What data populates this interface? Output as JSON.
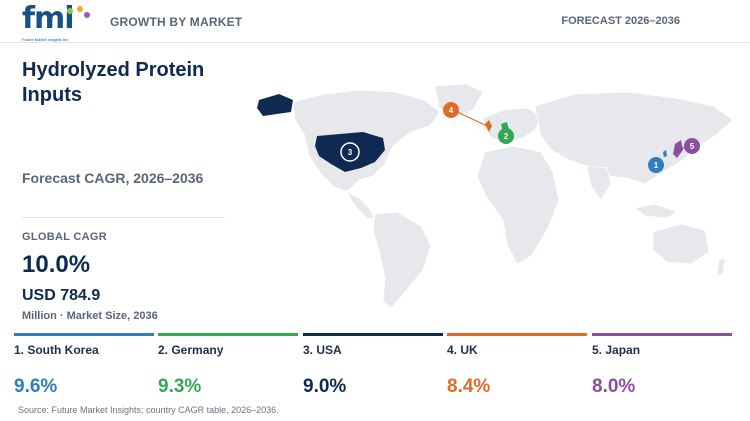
{
  "header": {
    "logo_letters": "fmi",
    "logo_tagline": "Future Market Insights Inc.",
    "left_label": "GROWTH BY MARKET",
    "right_label": "FORECAST 2026–2036"
  },
  "title": "Hydrolyzed Protein Inputs",
  "subtitle": "Forecast CAGR, 2026–2036",
  "global": {
    "label": "GLOBAL CAGR",
    "value": "10.0%",
    "size_value": "USD 784.9",
    "size_label": "Million · Market Size, 2036"
  },
  "countries": [
    {
      "rank": "1",
      "name": "1. South Korea",
      "value": "9.6%",
      "color": "#2f7dbb"
    },
    {
      "rank": "2",
      "name": "2. Germany",
      "value": "9.3%",
      "color": "#33a852"
    },
    {
      "rank": "3",
      "name": "3. USA",
      "value": "9.0%",
      "color": "#0e2a52"
    },
    {
      "rank": "4",
      "name": "4. UK",
      "value": "8.4%",
      "color": "#e06b26"
    },
    {
      "rank": "5",
      "name": "5. Japan",
      "value": "8.0%",
      "color": "#8b4fa0"
    }
  ],
  "map": {
    "land_color": "#e6e8eb",
    "border_color": "#ffffff"
  },
  "source": "Source: Future Market Insights; country CAGR table, 2026–2036."
}
